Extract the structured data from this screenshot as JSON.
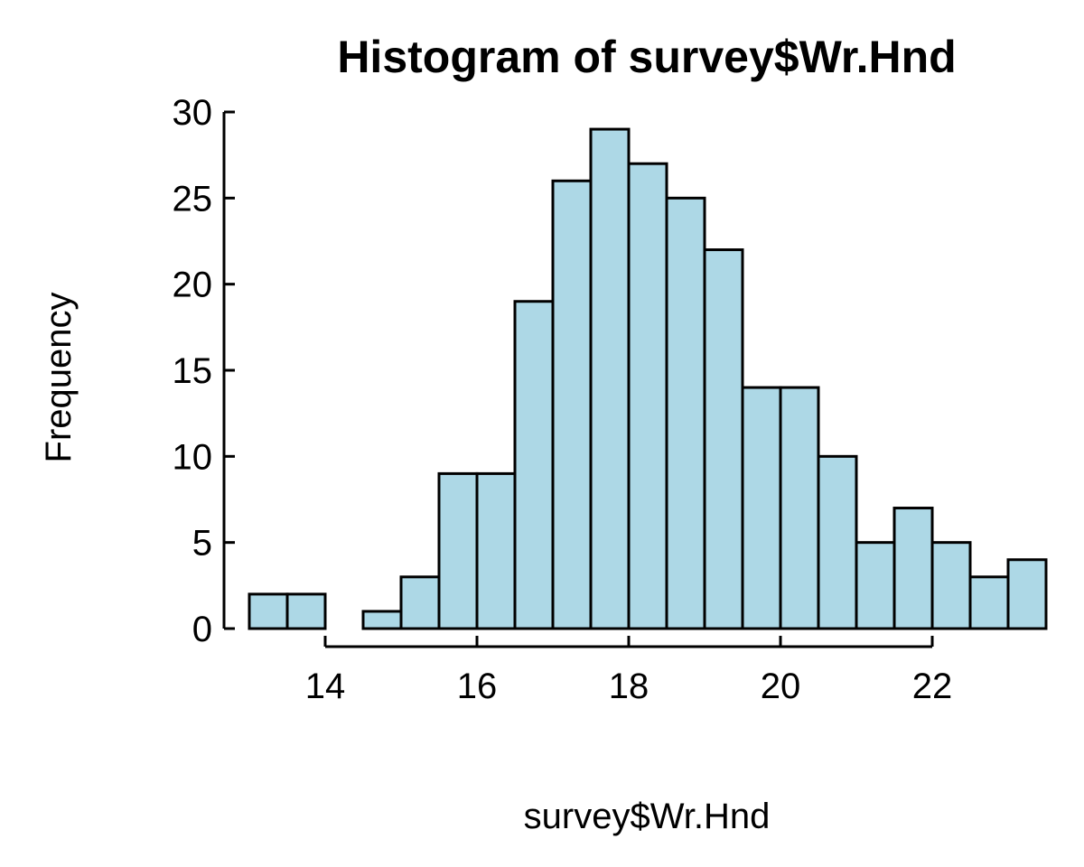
{
  "chart_data": {
    "type": "bar",
    "subtype": "histogram",
    "title": "Histogram of survey$Wr.Hnd",
    "xlabel": "survey$Wr.Hnd",
    "ylabel": "Frequency",
    "bin_width": 0.5,
    "bin_edges": [
      13.0,
      13.5,
      14.0,
      14.5,
      15.0,
      15.5,
      16.0,
      16.5,
      17.0,
      17.5,
      18.0,
      18.5,
      19.0,
      19.5,
      20.0,
      20.5,
      21.0,
      21.5,
      22.0,
      22.5,
      23.0,
      23.5
    ],
    "values": [
      2,
      2,
      0,
      1,
      3,
      9,
      9,
      19,
      26,
      29,
      27,
      25,
      22,
      14,
      14,
      10,
      5,
      7,
      5,
      3,
      4
    ],
    "xlim": [
      13.0,
      23.5
    ],
    "ylim": [
      0,
      30
    ],
    "xticks": [
      14,
      16,
      18,
      20,
      22
    ],
    "xtick_labels": [
      "14",
      "16",
      "18",
      "20",
      "22"
    ],
    "yticks": [
      0,
      5,
      10,
      15,
      20,
      25,
      30
    ],
    "ytick_labels": [
      "0",
      "5",
      "10",
      "15",
      "20",
      "25",
      "30"
    ],
    "bar_color": "#add8e6",
    "edge_color": "#000000",
    "grid": false
  }
}
